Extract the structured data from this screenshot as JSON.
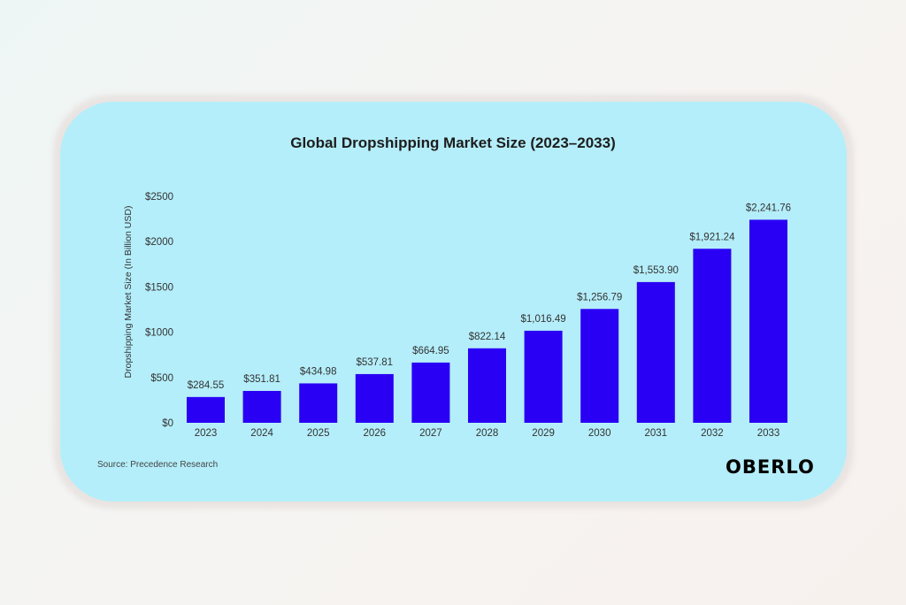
{
  "chart_data": {
    "type": "bar",
    "title": "Global Dropshipping Market Size (2023–2033)",
    "xlabel": "",
    "ylabel": "Dropshipping Market Size (In Billion USD)",
    "ylim": [
      0,
      2500
    ],
    "yticks": [
      "$0",
      "$500",
      "$1000",
      "$1500",
      "$2000",
      "$2500"
    ],
    "categories": [
      "2023",
      "2024",
      "2025",
      "2026",
      "2027",
      "2028",
      "2029",
      "2030",
      "2031",
      "2032",
      "2033"
    ],
    "values": [
      284.55,
      351.81,
      434.98,
      537.81,
      664.95,
      822.14,
      1016.49,
      1256.79,
      1553.9,
      1921.24,
      2241.76
    ],
    "data_labels": [
      "$284.55",
      "$351.81",
      "$434.98",
      "$537.81",
      "$664.95",
      "$822.14",
      "$1,016.49",
      "$1,256.79",
      "$1,553.90",
      "$1,921.24",
      "$2,241.76"
    ],
    "grid": false,
    "bar_color": "#2a00f5"
  },
  "source": "Source: Precedence Research",
  "logo": "OBERLO"
}
